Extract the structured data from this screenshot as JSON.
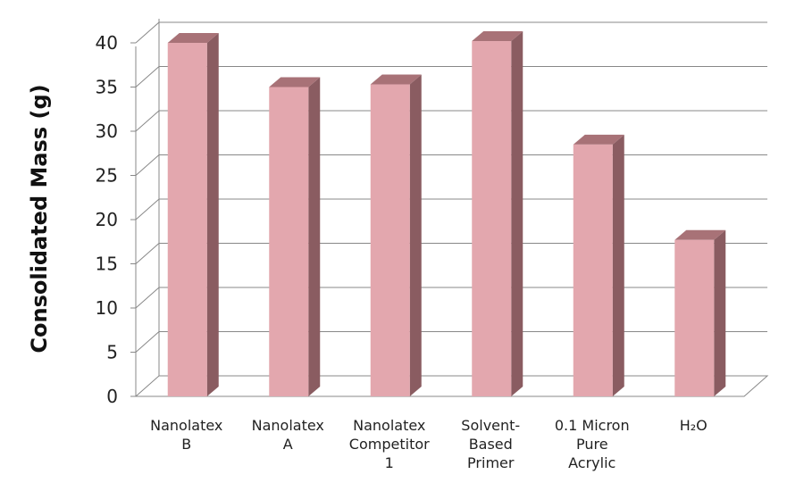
{
  "chart_data": {
    "type": "bar",
    "title": "",
    "xlabel": "",
    "ylabel": "Consolidated Mass (g)",
    "ylim": [
      0,
      40
    ],
    "yticks": [
      0,
      5,
      10,
      15,
      20,
      25,
      30,
      35,
      40
    ],
    "grid": true,
    "style": "3d",
    "colors": {
      "bar_front": "#e3a7ae",
      "bar_side": "#8a5c61",
      "bar_top": "#a87277",
      "grid": "#888888"
    },
    "categories": [
      [
        "Nanolatex",
        "B"
      ],
      [
        "Nanolatex",
        "A"
      ],
      [
        "Nanolatex",
        "Competitor",
        "1"
      ],
      [
        "Solvent-",
        "Based",
        "Primer"
      ],
      [
        "0.1 Micron",
        "Pure",
        "Acrylic"
      ],
      [
        "H₂O"
      ]
    ],
    "values": [
      40,
      35,
      35.3,
      40.2,
      28.5,
      17.7
    ]
  }
}
